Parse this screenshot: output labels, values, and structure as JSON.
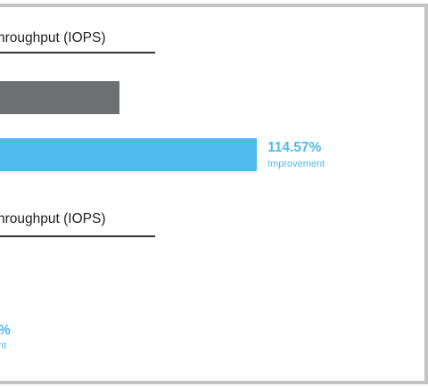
{
  "chart_data": {
    "type": "bar",
    "sections": [
      {
        "title": "hroughput (IOPS)",
        "series": [
          {
            "color": "#6e6f71",
            "value": 100
          },
          {
            "color": "#4fbaec",
            "value": 214.57
          }
        ],
        "annotation": {
          "value": "114.57%",
          "label": "Improvement"
        }
      },
      {
        "title": "hroughput (IOPS)",
        "annotation": {
          "value": "%",
          "label": "nt"
        }
      }
    ]
  },
  "colors": {
    "accent": "#4fbaec",
    "baseline": "#6e6f71",
    "frame": "#c4c4c4"
  }
}
